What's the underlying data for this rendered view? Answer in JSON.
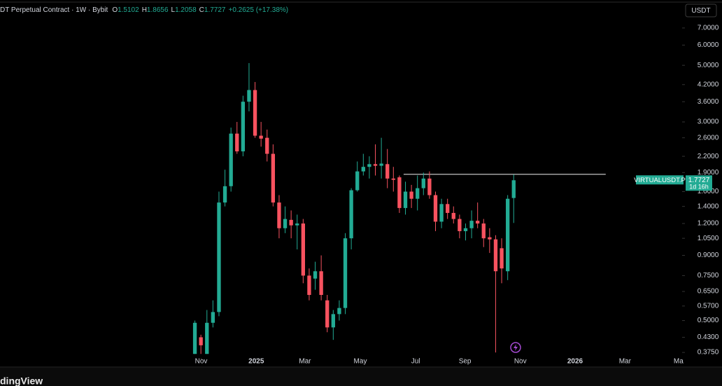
{
  "chart_data": {
    "type": "candlestick",
    "title": "DT Perpetual Contract · 1W · Bybit",
    "ohlc_header": [
      {
        "label": "O",
        "value": "1.5102"
      },
      {
        "label": "H",
        "value": "1.8656"
      },
      {
        "label": "L",
        "value": "1.2058"
      },
      {
        "label": "C",
        "value": "1.7727"
      }
    ],
    "change": "+0.2625 (+17.38%)",
    "currency_button": "USDT",
    "footer": "dingView",
    "up_color": "#22ab94",
    "down_color": "#f7525f",
    "log_scale": true,
    "x": [
      0,
      1,
      2,
      3,
      4,
      5,
      6,
      7,
      8,
      9,
      10,
      11,
      12,
      13,
      14,
      15,
      16,
      17,
      18,
      19,
      20,
      21,
      22,
      23,
      24,
      25,
      26,
      27,
      28,
      29,
      30,
      31,
      32,
      33,
      34,
      35,
      36,
      37,
      38,
      39,
      40,
      41,
      42,
      43,
      44,
      45,
      46,
      47,
      48,
      49,
      50,
      51,
      52,
      53
    ],
    "open": [
      0.37,
      0.43,
      0.37,
      0.49,
      0.54,
      1.45,
      1.68,
      2.7,
      2.3,
      3.6,
      4.0,
      2.65,
      2.6,
      2.25,
      1.45,
      1.15,
      1.24,
      1.18,
      1.2,
      0.75,
      0.73,
      0.78,
      0.6,
      0.47,
      0.53,
      0.56,
      1.05,
      1.62,
      1.92,
      2.0,
      2.05,
      2.02,
      2.05,
      1.8,
      1.82,
      1.38,
      1.6,
      1.5,
      1.65,
      1.8,
      1.55,
      1.22,
      1.43,
      1.32,
      1.25,
      1.12,
      1.15,
      1.23,
      1.2,
      1.06,
      1.04,
      0.96,
      0.78,
      1.5102
    ],
    "high": [
      0.5,
      0.44,
      0.55,
      0.6,
      1.6,
      1.95,
      2.85,
      3.0,
      3.8,
      5.1,
      4.3,
      3.0,
      2.8,
      2.45,
      1.55,
      1.4,
      1.35,
      1.3,
      1.25,
      0.8,
      0.85,
      0.9,
      0.63,
      0.55,
      0.6,
      1.1,
      1.65,
      2.1,
      2.25,
      2.2,
      2.45,
      2.6,
      2.35,
      2.0,
      1.85,
      1.75,
      1.7,
      1.85,
      1.9,
      1.92,
      1.6,
      1.5,
      1.5,
      1.4,
      1.3,
      1.2,
      1.35,
      1.45,
      1.25,
      1.15,
      1.08,
      1.05,
      1.55,
      1.8656
    ],
    "low": [
      0.37,
      0.37,
      0.37,
      0.47,
      0.52,
      1.4,
      1.6,
      2.25,
      2.2,
      3.3,
      2.6,
      2.4,
      2.1,
      1.4,
      1.05,
      1.1,
      1.05,
      0.95,
      0.7,
      0.6,
      0.66,
      0.6,
      0.45,
      0.42,
      0.5,
      0.53,
      0.95,
      1.6,
      1.85,
      1.8,
      1.85,
      1.8,
      1.65,
      1.6,
      1.32,
      1.3,
      1.38,
      1.35,
      1.55,
      1.5,
      1.12,
      1.15,
      1.25,
      1.2,
      1.05,
      1.03,
      1.05,
      1.15,
      0.97,
      0.92,
      0.375,
      0.7,
      0.72,
      1.2058
    ],
    "close": [
      0.49,
      0.4,
      0.49,
      0.54,
      1.45,
      1.68,
      2.7,
      2.3,
      3.6,
      4.0,
      2.65,
      2.58,
      2.25,
      1.45,
      1.15,
      1.25,
      1.18,
      1.2,
      0.75,
      0.63,
      0.78,
      0.63,
      0.47,
      0.53,
      0.56,
      1.05,
      1.62,
      1.92,
      2.0,
      2.05,
      2.02,
      2.06,
      1.8,
      1.78,
      1.38,
      1.6,
      1.5,
      1.65,
      1.8,
      1.55,
      1.22,
      1.43,
      1.32,
      1.25,
      1.12,
      1.15,
      1.23,
      1.2,
      1.05,
      1.04,
      0.78,
      0.8,
      1.5,
      1.7727
    ],
    "xlim": [
      -32.4,
      81
    ],
    "xticks": [
      {
        "value": 1.04,
        "label": "Nov"
      },
      {
        "value": 10.2,
        "label": "2025"
      },
      {
        "value": 18.3,
        "label": "Mar"
      },
      {
        "value": 27.5,
        "label": "May"
      },
      {
        "value": 36.7,
        "label": "Jul"
      },
      {
        "value": 44.9,
        "label": "Sep"
      },
      {
        "value": 54.1,
        "label": "Nov"
      },
      {
        "value": 63.2,
        "label": "2026"
      },
      {
        "value": 71.5,
        "label": "Mar"
      },
      {
        "value": 80.4,
        "label": "Ma"
      }
    ],
    "ylim": [
      0.359,
      9.01
    ],
    "yticks": [
      {
        "value": 7,
        "label": "7.0000"
      },
      {
        "value": 6,
        "label": "6.0000"
      },
      {
        "value": 5,
        "label": "5.0000"
      },
      {
        "value": 4.2,
        "label": "4.2000"
      },
      {
        "value": 3.6,
        "label": "3.6000"
      },
      {
        "value": 3,
        "label": "3.0000"
      },
      {
        "value": 2.6,
        "label": "2.6000"
      },
      {
        "value": 2.2,
        "label": "2.2000"
      },
      {
        "value": 1.9,
        "label": "1.9000"
      },
      {
        "value": 1.6,
        "label": "1.6000"
      },
      {
        "value": 1.4,
        "label": "1.4000"
      },
      {
        "value": 1.2,
        "label": "1.2000"
      },
      {
        "value": 1.05,
        "label": "1.0500"
      },
      {
        "value": 0.9,
        "label": "0.9000"
      },
      {
        "value": 0.75,
        "label": "0.7500"
      },
      {
        "value": 0.65,
        "label": "0.6500"
      },
      {
        "value": 0.57,
        "label": "0.5700"
      },
      {
        "value": 0.5,
        "label": "0.5000"
      },
      {
        "value": 0.43,
        "label": "0.4300"
      },
      {
        "value": 0.375,
        "label": "0.3750"
      }
    ],
    "hline": {
      "value": 1.87,
      "from": 34.7,
      "to": 68.3,
      "color": "#d8d8d8"
    },
    "last_price": {
      "value": 1.7727,
      "label": "1.7727",
      "symbol": "VIRTUALUSDT.P",
      "countdown": "1d 16h"
    }
  }
}
